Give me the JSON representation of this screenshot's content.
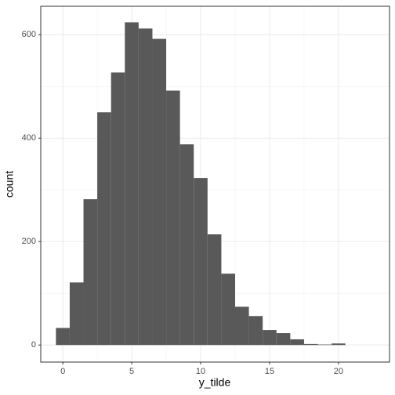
{
  "chart_data": {
    "type": "histogram",
    "x_label": "y_tilde",
    "y_label": "count",
    "bins": [
      -0.5,
      0.5,
      1.5,
      2.5,
      3.5,
      4.5,
      5.5,
      6.5,
      7.5,
      8.5,
      9.5,
      10.5,
      11.5,
      12.5,
      13.5,
      14.5,
      15.5,
      16.5,
      17.5,
      18.5,
      19.5,
      20.5
    ],
    "values": [
      33,
      121,
      282,
      450,
      527,
      624,
      612,
      592,
      492,
      388,
      323,
      214,
      138,
      74,
      56,
      29,
      23,
      11,
      2,
      1,
      3
    ],
    "color": "#595959",
    "xlim": [
      -1.6,
      23.7
    ],
    "ylim": [
      -33,
      655
    ],
    "xticks": [
      0,
      5,
      10,
      15,
      20
    ],
    "yticks": [
      0,
      200,
      400,
      600
    ],
    "grid": true
  }
}
